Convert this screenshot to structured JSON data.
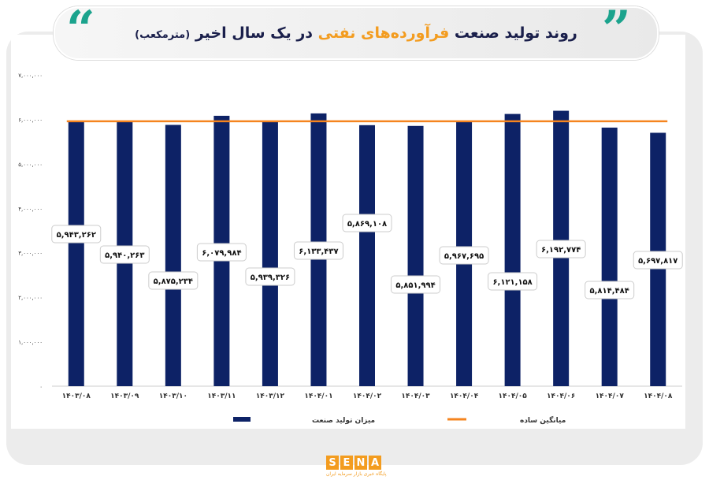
{
  "header": {
    "title_part1": "روند تولید صنعت",
    "title_highlight": "فرآورده‌های نفتی",
    "title_part2": "در یک سال اخیر",
    "title_unit": "(مترمکعب)"
  },
  "chart_data": {
    "type": "bar",
    "title": "روند تولید صنعت فرآورده‌های نفتی در یک سال اخیر (مترمکعب)",
    "categories": [
      "۱۴۰۳/۰۸",
      "۱۴۰۳/۰۹",
      "۱۴۰۳/۱۰",
      "۱۴۰۳/۱۱",
      "۱۴۰۳/۱۲",
      "۱۴۰۴/۰۱",
      "۱۴۰۴/۰۲",
      "۱۴۰۴/۰۳",
      "۱۴۰۴/۰۴",
      "۱۴۰۴/۰۵",
      "۱۴۰۴/۰۶",
      "۱۴۰۴/۰۷",
      "۱۴۰۴/۰۸"
    ],
    "series": [
      {
        "name": "میزان تولید صنعت",
        "type": "bar",
        "color": "#0d2266",
        "values": [
          5943262,
          5940263,
          5875234,
          6079984,
          5939326,
          6133437,
          5869108,
          5851994,
          5967695,
          6121158,
          6192774,
          5814484,
          5697817
        ]
      },
      {
        "name": "میانگین ساده",
        "type": "line",
        "color": "#f5841f",
        "values": [
          5955887,
          5955887,
          5955887,
          5955887,
          5955887,
          5955887,
          5955887,
          5955887,
          5955887,
          5955887,
          5955887,
          5955887,
          5955887
        ]
      }
    ],
    "data_labels": [
      "۵,۹۴۳,۲۶۲",
      "۵,۹۴۰,۲۶۳",
      "۵,۸۷۵,۲۳۴",
      "۶,۰۷۹,۹۸۴",
      "۵,۹۳۹,۳۲۶",
      "۶,۱۳۳,۴۳۷",
      "۵,۸۶۹,۱۰۸",
      "۵,۸۵۱,۹۹۴",
      "۵,۹۶۷,۶۹۵",
      "۶,۱۲۱,۱۵۸",
      "۶,۱۹۲,۷۷۴",
      "۵,۸۱۴,۴۸۴",
      "۵,۶۹۷,۸۱۷"
    ],
    "ylim": [
      0,
      7000000
    ],
    "yticks": [
      0,
      1000000,
      2000000,
      3000000,
      4000000,
      5000000,
      6000000,
      7000000
    ],
    "ytick_labels": [
      "۰",
      "۱,۰۰۰,۰۰۰",
      "۲,۰۰۰,۰۰۰",
      "۳,۰۰۰,۰۰۰",
      "۴,۰۰۰,۰۰۰",
      "۵,۰۰۰,۰۰۰",
      "۶,۰۰۰,۰۰۰",
      "۷,۰۰۰,۰۰۰"
    ],
    "grid": false,
    "legend": "bottom"
  },
  "footer": {
    "logo_letters": [
      "S",
      "E",
      "N",
      "A"
    ],
    "logo_sub": "پایگاه خبری بازار سرمایه ایران"
  }
}
